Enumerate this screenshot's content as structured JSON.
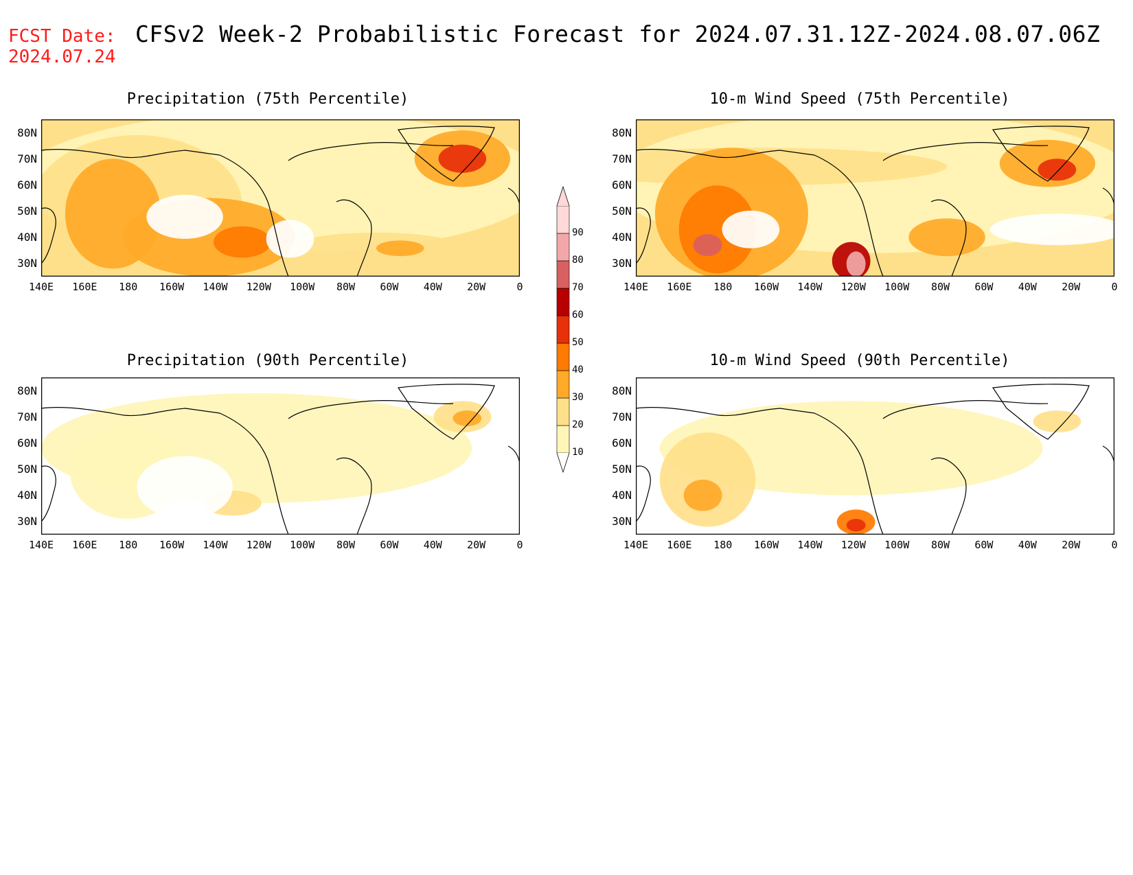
{
  "header": {
    "fcst_label": "FCST Date:",
    "fcst_date": "2024.07.24",
    "title": "CFSv2 Week-2 Probabilistic Forecast for 2024.07.31.12Z-2024.08.07.06Z"
  },
  "axes": {
    "lat_labels": [
      "80N",
      "70N",
      "60N",
      "50N",
      "40N",
      "30N"
    ],
    "lon_labels": [
      "140E",
      "160E",
      "180",
      "160W",
      "140W",
      "120W",
      "100W",
      "80W",
      "60W",
      "40W",
      "20W",
      "0"
    ]
  },
  "panels": [
    {
      "id": "precip75",
      "title": "Precipitation (75th Percentile)",
      "intensity": "high"
    },
    {
      "id": "wind75",
      "title": "10-m Wind Speed (75th Percentile)",
      "intensity": "high"
    },
    {
      "id": "precip90",
      "title": "Precipitation (90th Percentile)",
      "intensity": "low"
    },
    {
      "id": "wind90",
      "title": "10-m Wind Speed (90th Percentile)",
      "intensity": "low"
    }
  ],
  "colorbar": {
    "levels": [
      "10",
      "20",
      "30",
      "40",
      "50",
      "60",
      "70",
      "80",
      "90"
    ],
    "colors": [
      "#ffffff",
      "#fff5b8",
      "#ffe08a",
      "#ffa928",
      "#ff7a00",
      "#e8300a",
      "#b80000",
      "#d96060",
      "#f2a8a8",
      "#ffd8d8"
    ]
  }
}
